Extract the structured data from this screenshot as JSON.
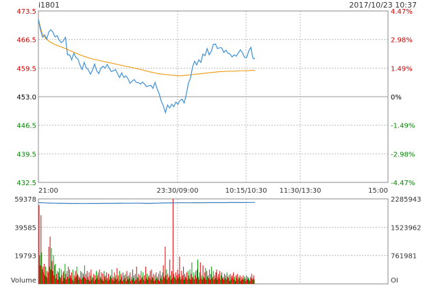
{
  "header": {
    "code": "i1801",
    "datetime": "2017/10/23 10:37"
  },
  "colors": {
    "up": "#cc0000",
    "down": "#008800",
    "flat": "#000000",
    "axis": "#333333",
    "grid": "#bbbbbb",
    "price": "#3a8fd9",
    "avg": "#f0a020",
    "vol_up": "#dd0000",
    "vol_down": "#009900",
    "hold": "#3a7fc0"
  },
  "chart_data": [
    {
      "type": "line",
      "yticks_left": [
        "473.5",
        "466.5",
        "459.5",
        "453.0",
        "446.5",
        "439.5",
        "432.5"
      ],
      "yticks_right": [
        "4.47%",
        "2.98%",
        "1.49%",
        "0%",
        "-1.49%",
        "-2.98%",
        "-4.47%"
      ],
      "ylim": [
        432.5,
        473.5
      ],
      "reference": 453.0,
      "xticks": [
        "21:00",
        "23:30/09:00",
        "10:15/10:30",
        "11:30/13:30",
        "15:00"
      ],
      "grid": true,
      "series": [
        {
          "role": "price",
          "values": [
            471.5,
            469.0,
            467.2,
            467.8,
            466.8,
            468.5,
            469.0,
            468.4,
            467.3,
            467.6,
            466.5,
            465.9,
            466.4,
            467.2,
            463.0,
            463.0,
            461.8,
            463.4,
            462.4,
            462.0,
            460.5,
            459.5,
            461.2,
            459.9,
            459.4,
            458.4,
            459.4,
            460.8,
            459.2,
            458.5,
            459.8,
            460.3,
            459.8,
            460.7,
            459.8,
            459.0,
            459.2,
            459.5,
            458.5,
            457.6,
            458.7,
            457.6,
            458.0,
            457.3,
            456.2,
            456.7,
            457.1,
            456.4,
            456.4,
            456.0,
            456.5,
            456.0,
            455.4,
            455.6,
            455.7,
            455.0,
            456.4,
            454.9,
            453.7,
            451.9,
            450.8,
            449.2,
            451.0,
            450.3,
            451.2,
            450.6,
            451.7,
            451.2,
            452.1,
            452.4,
            451.5,
            453.5,
            456.2,
            457.4,
            460.0,
            461.5,
            460.6,
            461.8,
            461.2,
            463.2,
            462.8,
            464.5,
            463.0,
            463.8,
            465.5,
            465.6,
            464.5,
            464.7,
            464.7,
            463.6,
            464.1,
            463.4,
            463.2,
            462.5,
            463.0,
            462.7,
            463.5,
            464.2,
            463.5,
            462.4,
            462.4,
            463.9,
            464.8,
            462.2,
            462.0
          ]
        },
        {
          "role": "average",
          "values": [
            471.5,
            468.0,
            466.8,
            466.1,
            465.6,
            465.2,
            464.9,
            464.5,
            464.1,
            463.7,
            463.3,
            462.9,
            462.6,
            462.3,
            462.0,
            461.8,
            461.6,
            461.4,
            461.2,
            461.0,
            460.8,
            460.6,
            460.4,
            460.2,
            460.0,
            459.8,
            459.6,
            459.4,
            459.1,
            458.9,
            458.7,
            458.5,
            458.4,
            458.3,
            458.2,
            458.1,
            458.0,
            458.0,
            458.1,
            458.2,
            458.3,
            458.4,
            458.5,
            458.6,
            458.7,
            458.8,
            458.9,
            459.0,
            459.0,
            459.1,
            459.1,
            459.1,
            459.2,
            459.2,
            459.2,
            459.3,
            459.3
          ]
        }
      ]
    },
    {
      "type": "bar",
      "title": "Volume",
      "yticks_left": [
        "59378",
        "39585",
        "19793",
        "Volume"
      ],
      "yticks_right": [
        "2285943",
        "1523962",
        "761981",
        "OI"
      ],
      "ylim": [
        0,
        59378
      ],
      "volumes": [
        55000,
        20000,
        13000,
        48000,
        22000,
        10000,
        12000,
        8000,
        14000,
        6000,
        12000,
        5000,
        9000,
        4000,
        8000,
        26000,
        12000,
        33000,
        10000,
        25000,
        16000,
        9000,
        20000,
        6000,
        13000,
        14000,
        4000,
        7000,
        9000,
        3000,
        8000,
        11000,
        5000,
        4000,
        10000,
        6000,
        2000,
        8000,
        9000,
        4000,
        14000,
        7000,
        3000,
        9000,
        5000,
        12000,
        4000,
        10000,
        6000,
        4000,
        8000,
        3000,
        10000,
        2000,
        6000,
        4000,
        9000,
        5000,
        12000,
        7000,
        6000,
        3000,
        5000,
        4000,
        9000,
        3000,
        8000,
        4000,
        7000,
        5000,
        13000,
        4000,
        7000,
        3000,
        9000,
        5000,
        3000,
        8000,
        2000,
        6000,
        10000,
        3000,
        5000,
        4000,
        7000,
        2000,
        6000,
        3000,
        9000,
        4000,
        6000,
        8000,
        3000,
        10000,
        5000,
        4000,
        8000,
        3000,
        7000,
        2000,
        9000,
        5000,
        6000,
        3000,
        8000,
        4000,
        2000,
        7000,
        3000,
        5000,
        6000,
        4000,
        10000,
        3000,
        5000,
        2000,
        8000,
        4000,
        6000,
        3000,
        11000,
        4000,
        6000,
        2000,
        9000,
        3000,
        7000,
        5000,
        2000,
        8000,
        3000,
        6000,
        4000,
        7000,
        2000,
        9000,
        5000,
        3000,
        6000,
        4000,
        8000,
        2000,
        5000,
        3000,
        10000,
        4000,
        6000,
        2000,
        7000,
        3000,
        12000,
        5000,
        4000,
        7000,
        2000,
        6000,
        3000,
        9000,
        4000,
        5000,
        8000,
        3000,
        6000,
        2000,
        12000,
        4000,
        7000,
        3000,
        5000,
        6000,
        4000,
        9000,
        3000,
        10000,
        5000,
        4000,
        7000,
        2000,
        6000,
        3000,
        8000,
        4000,
        5000,
        3000,
        7000,
        2000,
        9000,
        4000,
        6000,
        3000,
        8000,
        13000,
        5000,
        4000,
        26000,
        6000,
        10000,
        3000,
        7000,
        4000,
        5000,
        17000,
        6000,
        3000,
        9000,
        4000,
        60000,
        7000,
        5000,
        4000,
        8000,
        3000,
        6000,
        10000,
        4000,
        7000,
        19000,
        5000,
        3000,
        9000,
        4000,
        6000,
        12000,
        3000,
        7000,
        5000,
        4000,
        8000,
        3000,
        9000,
        6000,
        4000,
        10000,
        3000,
        7000,
        15000,
        5000,
        4000,
        8000,
        3000,
        6000,
        9000,
        4000,
        10000,
        17000,
        5000,
        3000,
        8000,
        15000,
        4000,
        6000,
        3000,
        13000,
        5000,
        4000,
        8000,
        11000,
        3000,
        9000,
        5000,
        6000,
        4000,
        10000,
        3000,
        7000,
        12000,
        4000,
        5000,
        9000,
        3000,
        6000,
        4000,
        8000,
        10000,
        3000,
        5000,
        7000,
        4000,
        9000,
        3000,
        6000,
        8000,
        4000,
        5000,
        3000,
        7000,
        4000,
        6000,
        3000,
        8000,
        5000,
        4000,
        6000,
        2000,
        7000,
        3000,
        5000,
        6000,
        4000,
        8000,
        3000,
        5000,
        2000,
        6000,
        4000,
        7000,
        3000,
        5000,
        4000,
        6000,
        2000,
        5000,
        3000,
        4000,
        6000,
        3000,
        5000,
        4000,
        2000,
        6000,
        3000,
        5000,
        4000,
        3000,
        2000,
        5000,
        4000,
        7000,
        3000,
        4000,
        6000,
        3000
      ],
      "open_interest": [
        2185000,
        2183000,
        2181000,
        2179000,
        2176000,
        2174000,
        2172000,
        2170000,
        2169000,
        2168000,
        2167000,
        2166000,
        2166000,
        2165000,
        2165000,
        2164000,
        2164000,
        2164000,
        2163000,
        2163000,
        2163000,
        2163000,
        2164000,
        2164000,
        2164000,
        2165000,
        2165000,
        2165000,
        2166000,
        2166000,
        2166000,
        2167000,
        2167000,
        2167000,
        2168000,
        2168000,
        2168000,
        2169000,
        2169000,
        2170000,
        2170000,
        2170000,
        2171000,
        2171000,
        2170000,
        2168000,
        2167000,
        2166000,
        2166000,
        2167000,
        2168000,
        2170000,
        2172000,
        2173000,
        2175000,
        2176000,
        2177000,
        2178000,
        2178000,
        2179000,
        2179000,
        2180000,
        2180000,
        2180000,
        2181000,
        2181000,
        2181000,
        2182000,
        2182000,
        2182000,
        2183000,
        2183000,
        2183000,
        2184000,
        2184000,
        2184000,
        2184000,
        2185000,
        2185000,
        2185000,
        2185000,
        2185000,
        2186000,
        2186000,
        2186000,
        2186000,
        2186000,
        2187000,
        2187000,
        2187000,
        2187000,
        2188000,
        2188000,
        2188000,
        2188000
      ]
    }
  ]
}
